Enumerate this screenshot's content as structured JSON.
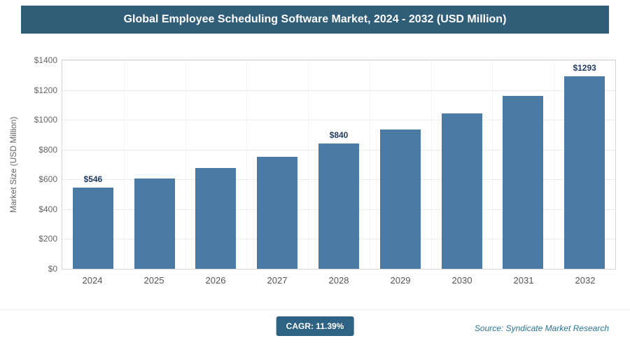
{
  "header": {
    "title": "Global Employee Scheduling Software Market, 2024 - 2032 (USD Million)"
  },
  "chart_data": {
    "type": "bar",
    "title": "Global Employee Scheduling Software Market, 2024 - 2032 (USD Million)",
    "categories": [
      "2024",
      "2025",
      "2026",
      "2027",
      "2028",
      "2029",
      "2030",
      "2031",
      "2032"
    ],
    "values": [
      546,
      608,
      677,
      754,
      840,
      936,
      1042,
      1161,
      1293
    ],
    "data_labels": [
      "$546",
      "",
      "",
      "",
      "$840",
      "",
      "",
      "",
      "$1293"
    ],
    "xlabel": "",
    "ylabel": "Market Size (USD Million)",
    "ylim": [
      0,
      1400
    ],
    "ytick_values": [
      0,
      200,
      400,
      600,
      800,
      1000,
      1200,
      1400
    ],
    "ytick_labels": [
      "$0",
      "$200",
      "$400",
      "$600",
      "$800",
      "$1000",
      "$1200",
      "$1400"
    ],
    "bar_color": "#4a7ba5",
    "grid": true,
    "legend_position": "none",
    "cagr": "11.39%"
  },
  "footer": {
    "cagr_label": "CAGR: 11.39%",
    "source": "Source: Syndicate Market Research"
  },
  "colors": {
    "header_bg": "#305d78",
    "badge_bg": "#2e6384",
    "source_text": "#2d7591",
    "bar": "#4a7ba5"
  }
}
